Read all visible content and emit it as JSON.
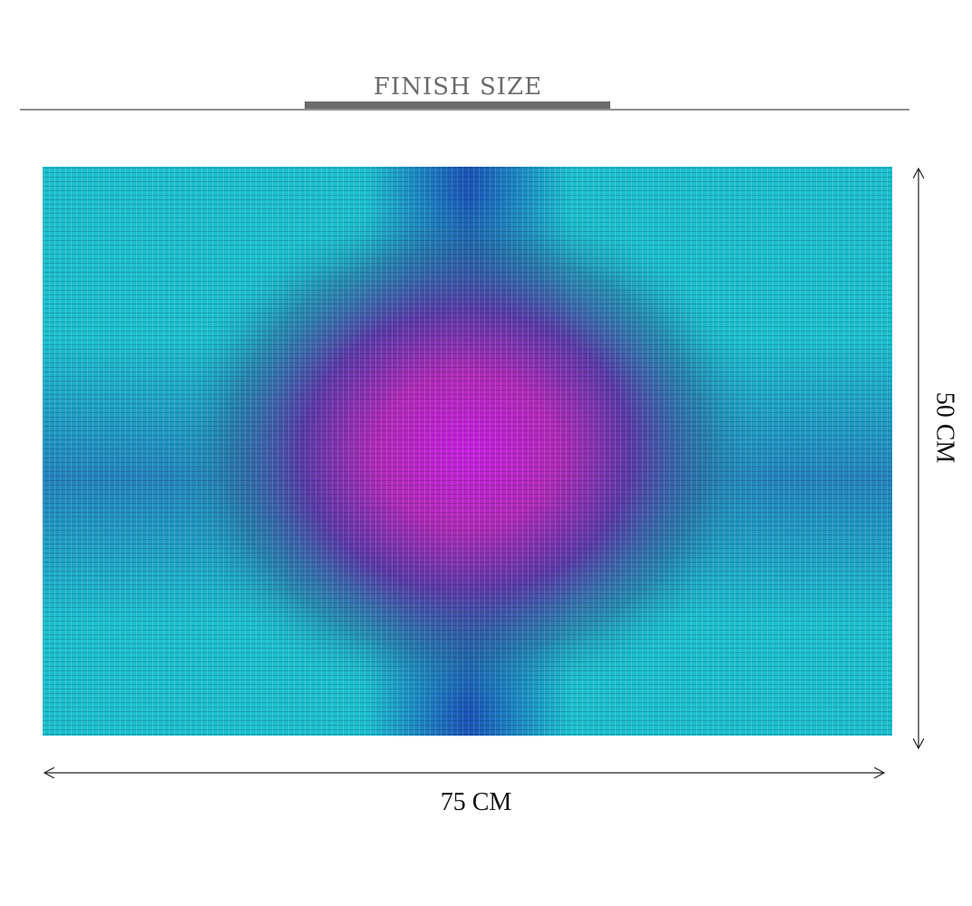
{
  "header": {
    "title": "FINISH SIZE"
  },
  "dimensions": {
    "width": "75 CM",
    "height": "50 CM"
  }
}
